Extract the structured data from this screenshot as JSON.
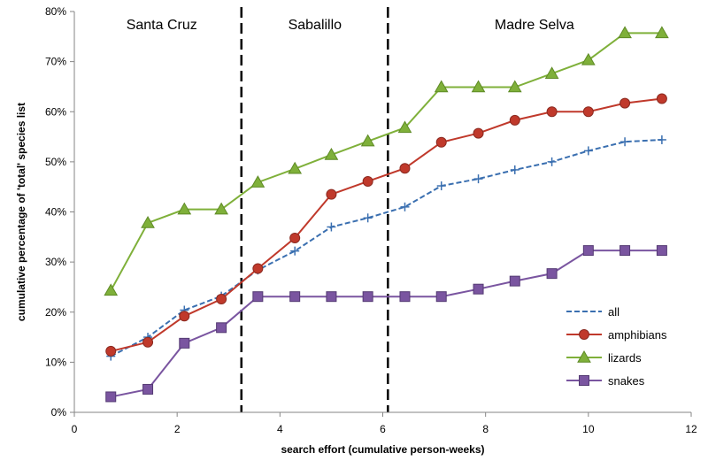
{
  "chart_data": {
    "type": "line",
    "title": "",
    "xlabel": "search effort (cumulative person-weeks)",
    "ylabel": "cumulative  percentage of 'total' species list",
    "xlim": [
      0,
      12
    ],
    "ylim": [
      0,
      80
    ],
    "xticks": [
      0,
      2,
      4,
      6,
      8,
      10,
      12
    ],
    "xtick_labels": [
      "0",
      "2",
      "4",
      "6",
      "8",
      "10",
      "12"
    ],
    "yticks": [
      0,
      10,
      20,
      30,
      40,
      50,
      60,
      70,
      80
    ],
    "ytick_labels": [
      "0%",
      "10%",
      "20%",
      "30%",
      "40%",
      "50%",
      "60%",
      "70%",
      "80%"
    ],
    "grid": false,
    "legend_position": "bottom-right",
    "x": [
      0.71,
      1.43,
      2.14,
      2.86,
      3.57,
      4.29,
      5.0,
      5.71,
      6.43,
      7.14,
      7.86,
      8.57,
      9.29,
      10.0,
      10.71,
      11.43
    ],
    "series": [
      {
        "name": "all",
        "color": "#3A6FB0",
        "marker": "plus",
        "dashed": true,
        "values": [
          11.2,
          15.0,
          20.4,
          23.2,
          28.4,
          32.2,
          37.0,
          38.8,
          41.0,
          45.2,
          46.6,
          48.4,
          50.0,
          52.2,
          54.0,
          54.4
        ]
      },
      {
        "name": "amphibians",
        "color": "#C0392B",
        "marker": "circle",
        "dashed": false,
        "values": [
          12.2,
          14.0,
          19.2,
          22.6,
          28.7,
          34.8,
          43.5,
          46.1,
          48.7,
          53.9,
          55.7,
          58.3,
          60.0,
          60.0,
          61.7,
          62.6
        ]
      },
      {
        "name": "lizards",
        "color": "#7FB03A",
        "marker": "triangle",
        "dashed": false,
        "values": [
          24.3,
          37.8,
          40.5,
          40.5,
          45.9,
          48.6,
          51.4,
          54.1,
          56.8,
          64.9,
          64.9,
          64.9,
          67.6,
          70.3,
          75.7,
          75.7
        ]
      },
      {
        "name": "snakes",
        "color": "#7A55A0",
        "marker": "square",
        "dashed": false,
        "values": [
          3.1,
          4.6,
          13.8,
          16.9,
          23.1,
          23.1,
          23.1,
          23.1,
          23.1,
          23.1,
          24.6,
          26.2,
          27.7,
          32.3,
          32.3,
          32.3
        ]
      }
    ],
    "dividers": [
      3.25,
      6.1
    ],
    "regions": [
      {
        "label": "Santa Cruz",
        "center": 1.7
      },
      {
        "label": "Sabalillo",
        "center": 4.68
      },
      {
        "label": "Madre Selva",
        "center": 8.95
      }
    ]
  }
}
